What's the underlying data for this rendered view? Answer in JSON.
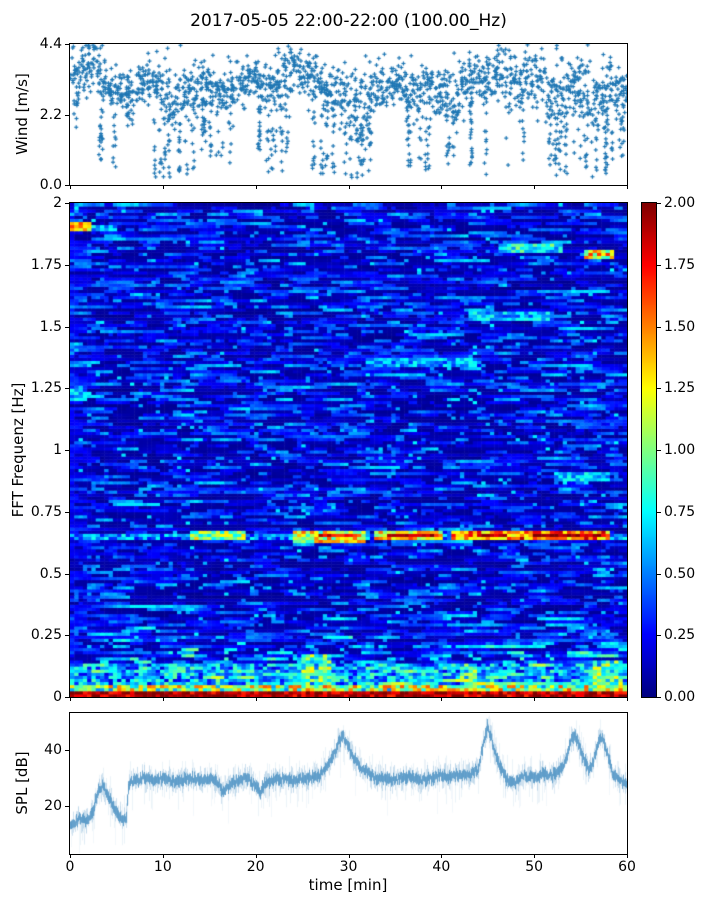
{
  "title": "2017-05-05 22:00-22:00 (100.00_Hz)",
  "colors": {
    "marker": "#1f77b4",
    "trace": "#1f77b4",
    "axis": "#000000",
    "background": "#ffffff"
  },
  "chart_data": {
    "wind": {
      "type": "scatter",
      "ylabel": "Wind [m/s]",
      "ylim": [
        0,
        4.4
      ],
      "ytick_values": [
        0,
        2.2,
        4.4
      ],
      "ytick_labels": [
        "0.0",
        "2.2",
        "4.4"
      ],
      "xlim": [
        0,
        60
      ],
      "marker": "plus",
      "marker_color": "#1f77b4",
      "points_per_minute": 30,
      "minute_stats_mean_spread_taillow": [
        [
          3.3,
          0.5,
          1.6
        ],
        [
          3.7,
          0.4,
          -1
        ],
        [
          3.8,
          0.4,
          -1
        ],
        [
          3.3,
          0.4,
          0.3
        ],
        [
          3.0,
          0.3,
          0.4
        ],
        [
          3.0,
          0.3,
          -1
        ],
        [
          2.9,
          0.3,
          1.8
        ],
        [
          3.1,
          0.3,
          -1
        ],
        [
          3.3,
          0.4,
          -1
        ],
        [
          3.2,
          0.4,
          0.1
        ],
        [
          2.6,
          0.6,
          0.2
        ],
        [
          2.6,
          0.6,
          0.3
        ],
        [
          2.9,
          0.4,
          0.3
        ],
        [
          3.0,
          0.4,
          0.5
        ],
        [
          3.2,
          0.3,
          1.0
        ],
        [
          3.1,
          0.3,
          0.8
        ],
        [
          2.9,
          0.3,
          0.3
        ],
        [
          2.9,
          0.4,
          0.2
        ],
        [
          3.2,
          0.3,
          -1
        ],
        [
          3.3,
          0.3,
          -1
        ],
        [
          3.2,
          0.3,
          1.0
        ],
        [
          3.1,
          0.3,
          0.4
        ],
        [
          3.3,
          0.4,
          0.2
        ],
        [
          3.5,
          0.4,
          1.0
        ],
        [
          3.6,
          0.4,
          -1
        ],
        [
          3.4,
          0.3,
          -1
        ],
        [
          3.2,
          0.4,
          0.3
        ],
        [
          3.0,
          0.4,
          0.3
        ],
        [
          2.9,
          0.4,
          0.3
        ],
        [
          2.8,
          0.4,
          0.3
        ],
        [
          2.6,
          0.6,
          0.2
        ],
        [
          2.4,
          0.7,
          0.2
        ],
        [
          2.8,
          0.5,
          0.4
        ],
        [
          3.0,
          0.4,
          -1
        ],
        [
          3.1,
          0.3,
          -1
        ],
        [
          3.2,
          0.3,
          -1
        ],
        [
          3.0,
          0.4,
          0.5
        ],
        [
          2.8,
          0.5,
          0.3
        ],
        [
          2.9,
          0.5,
          0.4
        ],
        [
          3.0,
          0.4,
          -1
        ],
        [
          2.9,
          0.4,
          0.6
        ],
        [
          2.7,
          0.5,
          0.9
        ],
        [
          3.0,
          0.4,
          -1
        ],
        [
          3.3,
          0.4,
          0.6
        ],
        [
          3.2,
          0.4,
          0.3
        ],
        [
          3.4,
          0.4,
          -1
        ],
        [
          3.5,
          0.4,
          -1
        ],
        [
          3.2,
          0.4,
          0.5
        ],
        [
          3.0,
          0.4,
          0.3
        ],
        [
          3.3,
          0.4,
          -1
        ],
        [
          3.4,
          0.4,
          -1
        ],
        [
          3.0,
          0.5,
          0.5
        ],
        [
          2.7,
          0.6,
          0.3
        ],
        [
          3.0,
          0.5,
          0.2
        ],
        [
          3.2,
          0.4,
          0.5
        ],
        [
          2.9,
          0.6,
          0.3
        ],
        [
          2.6,
          0.7,
          0.2
        ],
        [
          2.8,
          0.6,
          0.3
        ],
        [
          3.1,
          0.5,
          0.4
        ],
        [
          3.0,
          0.4,
          0.9
        ]
      ]
    },
    "spectrogram": {
      "type": "heatmap",
      "ylabel": "FFT Frequenz [Hz]",
      "ylim": [
        0,
        2
      ],
      "ytick_values": [
        0,
        0.25,
        0.5,
        0.75,
        1,
        1.25,
        1.5,
        1.75,
        2
      ],
      "ytick_labels": [
        "0",
        "0.25",
        "0.5",
        "0.75",
        "1",
        "1.25",
        "1.5",
        "1.75",
        "2"
      ],
      "xlim": [
        0,
        60
      ],
      "colormap": "jet",
      "value_range": [
        0,
        2
      ],
      "background_value_range": [
        0.05,
        0.65
      ],
      "grid_cols": 130,
      "grid_rows": 160,
      "features_t0_t1_f0_f1_value_jitter": [
        [
          0,
          60,
          0.0,
          0.022,
          1.9,
          0.25
        ],
        [
          0,
          60,
          0.022,
          0.055,
          1.05,
          0.55
        ],
        [
          0,
          60,
          0.055,
          0.14,
          0.55,
          0.4
        ],
        [
          25,
          28,
          0.03,
          0.17,
          0.85,
          0.45
        ],
        [
          42,
          44,
          0.03,
          0.14,
          0.8,
          0.4
        ],
        [
          56.5,
          59.5,
          0.03,
          0.15,
          0.85,
          0.45
        ],
        [
          0,
          60,
          0.64,
          0.668,
          0.5,
          0.3
        ],
        [
          13,
          19,
          0.635,
          0.675,
          1.05,
          0.35
        ],
        [
          24,
          32,
          0.63,
          0.68,
          1.2,
          0.4
        ],
        [
          27,
          31,
          0.648,
          0.664,
          1.75,
          0.2
        ],
        [
          33,
          40,
          0.638,
          0.672,
          1.3,
          0.35
        ],
        [
          34,
          39,
          0.652,
          0.663,
          1.85,
          0.15
        ],
        [
          41,
          48,
          0.64,
          0.675,
          1.45,
          0.35
        ],
        [
          44,
          47,
          0.65,
          0.665,
          1.9,
          0.15
        ],
        [
          48,
          58,
          0.632,
          0.678,
          1.55,
          0.4
        ],
        [
          50,
          57,
          0.646,
          0.668,
          1.95,
          0.2
        ],
        [
          0,
          2.5,
          1.885,
          1.925,
          1.35,
          0.3
        ],
        [
          2.5,
          5,
          1.885,
          1.915,
          0.6,
          0.2
        ],
        [
          0,
          2,
          1.2,
          1.26,
          0.55,
          0.25
        ],
        [
          46,
          53,
          1.795,
          1.84,
          0.75,
          0.3
        ],
        [
          55.5,
          58.5,
          1.775,
          1.815,
          1.25,
          0.45
        ],
        [
          43,
          52,
          1.525,
          1.56,
          0.6,
          0.25
        ],
        [
          32,
          44,
          1.335,
          1.372,
          0.55,
          0.25
        ],
        [
          52,
          58,
          0.88,
          0.915,
          0.6,
          0.25
        ]
      ]
    },
    "colorbar": {
      "type": "colorbar",
      "colormap": "jet",
      "range": [
        0,
        2
      ],
      "tick_values": [
        0,
        0.25,
        0.5,
        0.75,
        1,
        1.25,
        1.5,
        1.75,
        2
      ],
      "tick_labels": [
        "0.00",
        "0.25",
        "0.50",
        "0.75",
        "1.00",
        "1.25",
        "1.50",
        "1.75",
        "2.00"
      ]
    },
    "spl": {
      "type": "line",
      "ylabel": "SPL [dB]",
      "xlabel": "time [min]",
      "ylim": [
        3,
        53
      ],
      "ytick_values": [
        20,
        40
      ],
      "ytick_labels": [
        "20",
        "40"
      ],
      "xtick_values": [
        0,
        10,
        20,
        30,
        40,
        50,
        60
      ],
      "xtick_labels": [
        "0",
        "10",
        "20",
        "30",
        "40",
        "50",
        "60"
      ],
      "line_color": "#1f77b4",
      "noise_db": 4,
      "points_t_db": [
        [
          0,
          13
        ],
        [
          0.5,
          14
        ],
        [
          1,
          16
        ],
        [
          1.5,
          15
        ],
        [
          2,
          15
        ],
        [
          2.5,
          19
        ],
        [
          3,
          26
        ],
        [
          3.5,
          27
        ],
        [
          4,
          24
        ],
        [
          4.5,
          21
        ],
        [
          5,
          18
        ],
        [
          5.5,
          16
        ],
        [
          6,
          15
        ],
        [
          6.3,
          28
        ],
        [
          7,
          29
        ],
        [
          8,
          30
        ],
        [
          9,
          29
        ],
        [
          10,
          30
        ],
        [
          11,
          29
        ],
        [
          12,
          29
        ],
        [
          13,
          30
        ],
        [
          14,
          29
        ],
        [
          15,
          30
        ],
        [
          16,
          28
        ],
        [
          16.5,
          25
        ],
        [
          17,
          27
        ],
        [
          18,
          29
        ],
        [
          19,
          30
        ],
        [
          20,
          27
        ],
        [
          20.5,
          25
        ],
        [
          21,
          28
        ],
        [
          22,
          29
        ],
        [
          23,
          30
        ],
        [
          24,
          29
        ],
        [
          25,
          30
        ],
        [
          26,
          30
        ],
        [
          27,
          31
        ],
        [
          27.5,
          33
        ],
        [
          28,
          36
        ],
        [
          28.5,
          39
        ],
        [
          29,
          43
        ],
        [
          29.4,
          45
        ],
        [
          30,
          41
        ],
        [
          30.5,
          37
        ],
        [
          31,
          35
        ],
        [
          31.5,
          33
        ],
        [
          32,
          32
        ],
        [
          33,
          30
        ],
        [
          34,
          30
        ],
        [
          35,
          29
        ],
        [
          36,
          30
        ],
        [
          37,
          30
        ],
        [
          38,
          29
        ],
        [
          39,
          30
        ],
        [
          40,
          31
        ],
        [
          41,
          30
        ],
        [
          42,
          31
        ],
        [
          43,
          31
        ],
        [
          44,
          33
        ],
        [
          44.6,
          43
        ],
        [
          45,
          48
        ],
        [
          45.4,
          44
        ],
        [
          46,
          37
        ],
        [
          46.5,
          33
        ],
        [
          47,
          30
        ],
        [
          48,
          28
        ],
        [
          48.5,
          30
        ],
        [
          49,
          31
        ],
        [
          50,
          30
        ],
        [
          51,
          31
        ],
        [
          52,
          31
        ],
        [
          53,
          33
        ],
        [
          53.6,
          38
        ],
        [
          54,
          43
        ],
        [
          54.4,
          45
        ],
        [
          55,
          40
        ],
        [
          55.5,
          36
        ],
        [
          56,
          33
        ],
        [
          56.5,
          37
        ],
        [
          57,
          43
        ],
        [
          57.4,
          44
        ],
        [
          58,
          38
        ],
        [
          58.5,
          32
        ],
        [
          59,
          30
        ],
        [
          59.5,
          29
        ],
        [
          60,
          28
        ]
      ]
    }
  }
}
